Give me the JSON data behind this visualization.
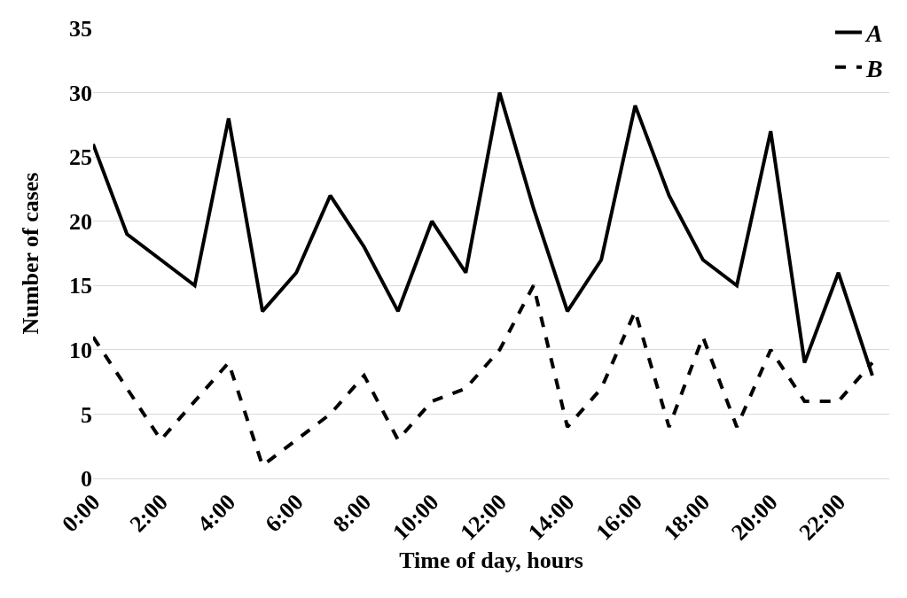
{
  "chart_data": {
    "type": "line",
    "xlabel": "Time of day, hours",
    "ylabel": "Number of cases",
    "x": [
      0,
      1,
      2,
      3,
      4,
      5,
      6,
      7,
      8,
      9,
      10,
      11,
      12,
      13,
      14,
      15,
      16,
      17,
      18,
      19,
      20,
      21,
      22,
      23
    ],
    "series": [
      {
        "name": "A",
        "color": "#000000",
        "line_style": "solid",
        "values": [
          26,
          19,
          17,
          15,
          28,
          13,
          16,
          22,
          18,
          13,
          20,
          16,
          30,
          21,
          13,
          17,
          29,
          22,
          17,
          15,
          27,
          9,
          16,
          8
        ]
      },
      {
        "name": "B",
        "color": "#000000",
        "line_style": "dashed",
        "values": [
          11,
          7,
          3,
          6,
          9,
          1,
          3,
          5,
          8,
          3,
          6,
          7,
          10,
          15,
          4,
          7,
          13,
          4,
          11,
          4,
          10,
          6,
          6,
          9
        ]
      }
    ],
    "xlim": [
      0,
      23.5
    ],
    "xticks": [
      {
        "value": 0,
        "label": "0:00"
      },
      {
        "value": 2,
        "label": "2:00"
      },
      {
        "value": 4,
        "label": "4:00"
      },
      {
        "value": 6,
        "label": "6:00"
      },
      {
        "value": 8,
        "label": "8:00"
      },
      {
        "value": 10,
        "label": "10:00"
      },
      {
        "value": 12,
        "label": "12:00"
      },
      {
        "value": 14,
        "label": "14:00"
      },
      {
        "value": 16,
        "label": "16:00"
      },
      {
        "value": 18,
        "label": "18:00"
      },
      {
        "value": 20,
        "label": "20:00"
      },
      {
        "value": 22,
        "label": "22:00"
      }
    ],
    "ylim": [
      0,
      35
    ],
    "yticks": [
      0,
      5,
      10,
      15,
      20,
      25,
      30,
      35
    ],
    "grid": "y",
    "legend": "top right",
    "marker": "none"
  }
}
